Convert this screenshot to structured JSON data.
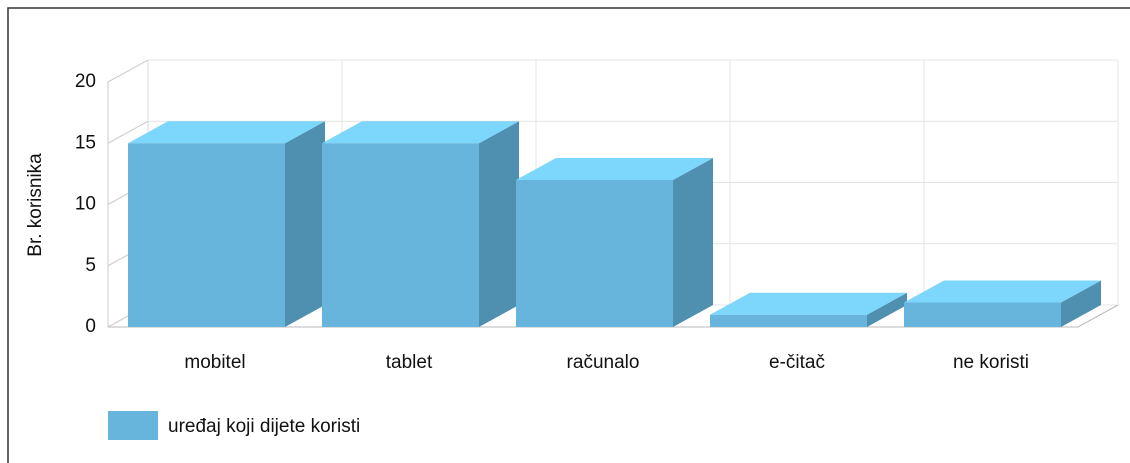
{
  "chart_data": {
    "type": "bar3d",
    "y_label": "Br. korisnika",
    "categories": [
      "mobitel",
      "tablet",
      "računalo",
      "e-čitač",
      "ne koristi"
    ],
    "series": [
      {
        "name": "uređaj koji dijete koristi",
        "color": "#67b5dc",
        "values": [
          15,
          15,
          12,
          1,
          2
        ]
      }
    ],
    "ylim": [
      0,
      20
    ],
    "yticks": [
      0,
      5,
      10,
      15,
      20
    ],
    "grid": true,
    "legend": "bottom-left"
  }
}
